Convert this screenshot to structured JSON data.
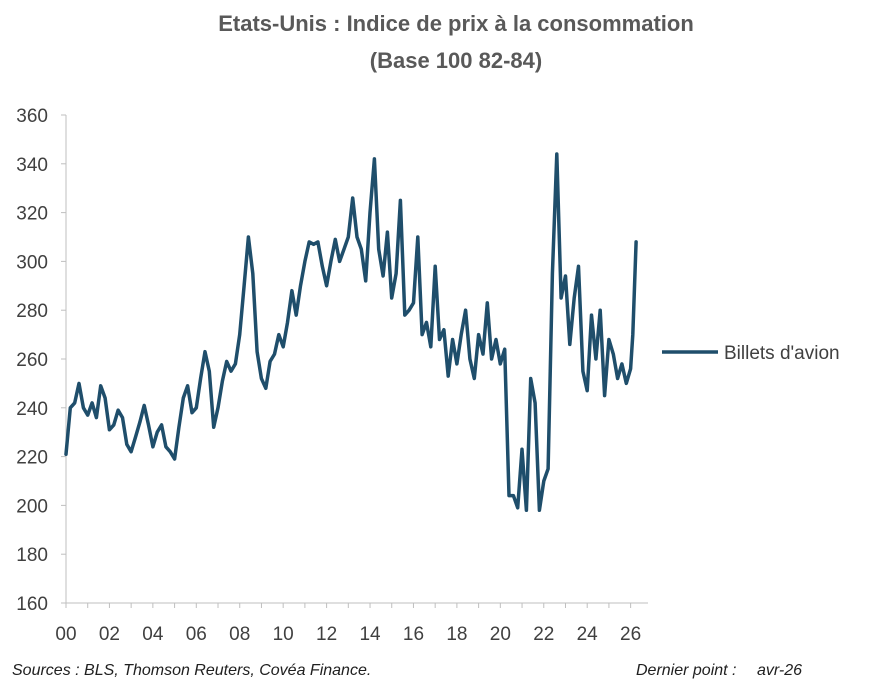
{
  "chart_data": {
    "type": "line",
    "title": "Etats-Unis : Indice de prix à la consommation",
    "subtitle": "(Base 100 82-84)",
    "xlabel": "",
    "ylabel": "",
    "xlim": [
      2000.0,
      2026.8
    ],
    "ylim": [
      160,
      360
    ],
    "y_ticks": [
      160,
      180,
      200,
      220,
      240,
      260,
      280,
      300,
      320,
      340,
      360
    ],
    "x_ticks": [
      {
        "label": "00",
        "value": 2000.0
      },
      {
        "label": "02",
        "value": 2002.0
      },
      {
        "label": "04",
        "value": 2004.0
      },
      {
        "label": "06",
        "value": 2006.0
      },
      {
        "label": "08",
        "value": 2008.0
      },
      {
        "label": "10",
        "value": 2010.0
      },
      {
        "label": "12",
        "value": 2012.0
      },
      {
        "label": "14",
        "value": 2014.0
      },
      {
        "label": "16",
        "value": 2016.0
      },
      {
        "label": "18",
        "value": 2018.0
      },
      {
        "label": "20",
        "value": 2020.0
      },
      {
        "label": "22",
        "value": 2022.0
      },
      {
        "label": "24",
        "value": 2024.0
      },
      {
        "label": "26",
        "value": 2026.0
      }
    ],
    "grid": false,
    "legend_position": "right",
    "series": [
      {
        "name": "Billets d'avion",
        "color": "#1f4e6b",
        "points": [
          [
            2000.0,
            221
          ],
          [
            2000.2,
            240
          ],
          [
            2000.4,
            242
          ],
          [
            2000.6,
            250
          ],
          [
            2000.8,
            240
          ],
          [
            2001.0,
            237
          ],
          [
            2001.2,
            242
          ],
          [
            2001.4,
            236
          ],
          [
            2001.6,
            249
          ],
          [
            2001.8,
            244
          ],
          [
            2002.0,
            231
          ],
          [
            2002.2,
            233
          ],
          [
            2002.4,
            239
          ],
          [
            2002.6,
            236
          ],
          [
            2002.8,
            225
          ],
          [
            2003.0,
            222
          ],
          [
            2003.2,
            228
          ],
          [
            2003.4,
            234
          ],
          [
            2003.6,
            241
          ],
          [
            2003.8,
            233
          ],
          [
            2004.0,
            224
          ],
          [
            2004.2,
            230
          ],
          [
            2004.4,
            233
          ],
          [
            2004.6,
            224
          ],
          [
            2004.8,
            222
          ],
          [
            2005.0,
            219
          ],
          [
            2005.2,
            232
          ],
          [
            2005.4,
            244
          ],
          [
            2005.6,
            249
          ],
          [
            2005.8,
            238
          ],
          [
            2006.0,
            240
          ],
          [
            2006.2,
            252
          ],
          [
            2006.4,
            263
          ],
          [
            2006.6,
            255
          ],
          [
            2006.8,
            232
          ],
          [
            2007.0,
            240
          ],
          [
            2007.2,
            251
          ],
          [
            2007.4,
            259
          ],
          [
            2007.6,
            255
          ],
          [
            2007.8,
            258
          ],
          [
            2008.0,
            270
          ],
          [
            2008.2,
            290
          ],
          [
            2008.4,
            310
          ],
          [
            2008.6,
            295
          ],
          [
            2008.8,
            263
          ],
          [
            2009.0,
            252
          ],
          [
            2009.2,
            248
          ],
          [
            2009.4,
            259
          ],
          [
            2009.6,
            262
          ],
          [
            2009.8,
            270
          ],
          [
            2010.0,
            265
          ],
          [
            2010.2,
            275
          ],
          [
            2010.4,
            288
          ],
          [
            2010.6,
            278
          ],
          [
            2010.8,
            290
          ],
          [
            2011.0,
            300
          ],
          [
            2011.2,
            308
          ],
          [
            2011.4,
            307
          ],
          [
            2011.6,
            308
          ],
          [
            2011.8,
            298
          ],
          [
            2012.0,
            290
          ],
          [
            2012.2,
            300
          ],
          [
            2012.4,
            309
          ],
          [
            2012.6,
            300
          ],
          [
            2012.8,
            305
          ],
          [
            2013.0,
            310
          ],
          [
            2013.2,
            326
          ],
          [
            2013.4,
            310
          ],
          [
            2013.6,
            305
          ],
          [
            2013.8,
            292
          ],
          [
            2014.0,
            320
          ],
          [
            2014.2,
            342
          ],
          [
            2014.4,
            305
          ],
          [
            2014.6,
            294
          ],
          [
            2014.8,
            312
          ],
          [
            2015.0,
            285
          ],
          [
            2015.2,
            295
          ],
          [
            2015.4,
            325
          ],
          [
            2015.6,
            278
          ],
          [
            2015.8,
            280
          ],
          [
            2016.0,
            283
          ],
          [
            2016.2,
            310
          ],
          [
            2016.4,
            270
          ],
          [
            2016.6,
            275
          ],
          [
            2016.8,
            265
          ],
          [
            2017.0,
            298
          ],
          [
            2017.2,
            268
          ],
          [
            2017.4,
            272
          ],
          [
            2017.6,
            253
          ],
          [
            2017.8,
            268
          ],
          [
            2018.0,
            258
          ],
          [
            2018.2,
            270
          ],
          [
            2018.4,
            280
          ],
          [
            2018.6,
            260
          ],
          [
            2018.8,
            252
          ],
          [
            2019.0,
            270
          ],
          [
            2019.2,
            262
          ],
          [
            2019.4,
            283
          ],
          [
            2019.6,
            260
          ],
          [
            2019.8,
            268
          ],
          [
            2020.0,
            258
          ],
          [
            2020.2,
            264
          ],
          [
            2020.4,
            204
          ],
          [
            2020.6,
            204
          ],
          [
            2020.8,
            199
          ],
          [
            2021.0,
            223
          ],
          [
            2021.2,
            198
          ],
          [
            2021.4,
            252
          ],
          [
            2021.6,
            242
          ],
          [
            2021.8,
            198
          ],
          [
            2022.0,
            210
          ],
          [
            2022.2,
            215
          ],
          [
            2022.4,
            295
          ],
          [
            2022.6,
            344
          ],
          [
            2022.8,
            285
          ],
          [
            2023.0,
            294
          ],
          [
            2023.2,
            266
          ],
          [
            2023.4,
            285
          ],
          [
            2023.6,
            298
          ],
          [
            2023.8,
            255
          ],
          [
            2024.0,
            247
          ],
          [
            2024.2,
            278
          ],
          [
            2024.4,
            260
          ],
          [
            2024.6,
            280
          ],
          [
            2024.8,
            245
          ],
          [
            2025.0,
            268
          ],
          [
            2025.2,
            262
          ],
          [
            2025.4,
            252
          ],
          [
            2025.6,
            258
          ],
          [
            2025.8,
            250
          ],
          [
            2026.0,
            256
          ],
          [
            2026.1,
            270
          ],
          [
            2026.25,
            308
          ]
        ]
      }
    ]
  },
  "footer": {
    "source": "Sources : BLS, Thomson Reuters, Covéa Finance.",
    "last_point_label": "Dernier point :",
    "last_point_value": "avr-26"
  }
}
